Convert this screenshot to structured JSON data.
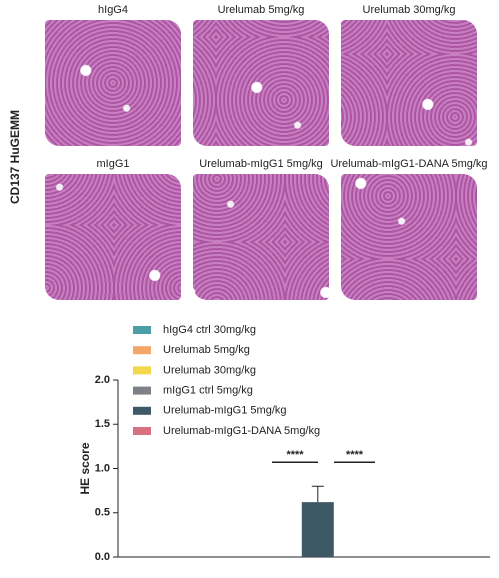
{
  "side_label": "CD137 HuGEMM",
  "panels": [
    {
      "title": "hIgG4"
    },
    {
      "title": "Urelumab 5mg/kg"
    },
    {
      "title": "Urelumab 30mg/kg"
    },
    {
      "title": "mIgG1"
    },
    {
      "title": "Urelumab-mIgG1 5mg/kg"
    },
    {
      "title": "Urelumab-mIgG1-DANA 5mg/kg"
    }
  ],
  "chart_data": {
    "type": "bar",
    "y_label": "HE score",
    "categories": [
      null
    ],
    "series": [
      {
        "name": "hIgG4 ctrl 30mg/kg",
        "color": "#4a9ea8",
        "values": [
          0
        ]
      },
      {
        "name": "Urelumab 5mg/kg",
        "color": "#f4a56a",
        "values": [
          0
        ]
      },
      {
        "name": "Urelumab 30mg/kg",
        "color": "#f2d84a",
        "values": [
          0
        ]
      },
      {
        "name": "mIgG1 ctrl 5mg/kg",
        "color": "#7d8187",
        "values": [
          0
        ]
      },
      {
        "name": "Urelumab-mIgG1 5mg/kg",
        "color": "#3f5866",
        "values": [
          0.62
        ],
        "errors": [
          0.18
        ]
      },
      {
        "name": "Urelumab-mIgG1-DANA 5mg/kg",
        "color": "#d9707f",
        "values": [
          0
        ]
      }
    ],
    "annotations": [
      "****",
      "****"
    ],
    "ylim": [
      0,
      2
    ],
    "yticks": [
      {
        "value": 0,
        "label": "0.0"
      },
      {
        "value": 0.5,
        "label": "0.5"
      },
      {
        "value": 1,
        "label": "1.0"
      },
      {
        "value": 1.5,
        "label": "1.5"
      },
      {
        "value": 2,
        "label": "2.0"
      }
    ]
  }
}
